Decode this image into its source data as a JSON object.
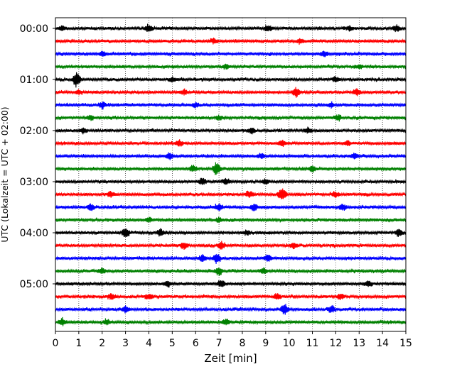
{
  "chart_data": {
    "type": "line",
    "subtype": "dayplot-seismogram",
    "title": "",
    "xlabel": "Zeit  [min]",
    "ylabel": "UTC (Lokalzeit = UTC + 02:00)",
    "xlim": [
      0,
      15
    ],
    "x_ticks": [
      "0",
      "1",
      "2",
      "3",
      "4",
      "5",
      "6",
      "7",
      "8",
      "9",
      "10",
      "11",
      "12",
      "13",
      "14",
      "15"
    ],
    "y_tick_labels": [
      "00:00",
      "01:00",
      "02:00",
      "03:00",
      "04:00",
      "05:00"
    ],
    "trace_interval_min": 15,
    "trace_colors": [
      "#000000",
      "#ff0000",
      "#0000ff",
      "#008000"
    ],
    "grid": "vertical-dotted",
    "traces": [
      {
        "start": "00:00",
        "events": [
          [
            0.3,
            1.4
          ],
          [
            4.0,
            2.2
          ],
          [
            9.1,
            1.8
          ],
          [
            12.6,
            1.6
          ],
          [
            14.6,
            2.0
          ]
        ]
      },
      {
        "start": "00:15",
        "events": [
          [
            6.8,
            1.8
          ],
          [
            10.5,
            1.4
          ]
        ]
      },
      {
        "start": "00:30",
        "events": [
          [
            2.0,
            1.3
          ],
          [
            11.5,
            1.6
          ]
        ]
      },
      {
        "start": "00:45",
        "events": [
          [
            7.3,
            1.3
          ],
          [
            13.0,
            1.3
          ]
        ]
      },
      {
        "start": "01:00",
        "events": [
          [
            0.9,
            5.0
          ],
          [
            5.0,
            1.5
          ],
          [
            12.0,
            1.6
          ]
        ]
      },
      {
        "start": "01:15",
        "events": [
          [
            1.0,
            1.4
          ],
          [
            5.5,
            1.8
          ],
          [
            10.3,
            3.0
          ],
          [
            12.9,
            2.0
          ]
        ]
      },
      {
        "start": "01:30",
        "events": [
          [
            2.0,
            2.0
          ],
          [
            6.0,
            1.5
          ],
          [
            11.8,
            1.6
          ]
        ]
      },
      {
        "start": "01:45",
        "events": [
          [
            1.5,
            1.4
          ],
          [
            7.0,
            1.4
          ],
          [
            12.1,
            1.6
          ]
        ]
      },
      {
        "start": "02:00",
        "events": [
          [
            1.2,
            1.8
          ],
          [
            8.4,
            2.0
          ],
          [
            10.8,
            1.6
          ]
        ]
      },
      {
        "start": "02:15",
        "events": [
          [
            5.3,
            2.0
          ],
          [
            9.7,
            1.8
          ],
          [
            12.5,
            1.5
          ]
        ]
      },
      {
        "start": "02:30",
        "events": [
          [
            4.9,
            1.5
          ],
          [
            8.8,
            1.4
          ],
          [
            12.8,
            1.7
          ]
        ]
      },
      {
        "start": "02:45",
        "events": [
          [
            5.9,
            1.8
          ],
          [
            6.9,
            4.2
          ],
          [
            11.0,
            2.0
          ]
        ]
      },
      {
        "start": "03:00",
        "events": [
          [
            6.3,
            2.2
          ],
          [
            7.3,
            1.8
          ],
          [
            9.0,
            1.6
          ]
        ]
      },
      {
        "start": "03:15",
        "events": [
          [
            2.4,
            1.6
          ],
          [
            8.3,
            1.8
          ],
          [
            9.7,
            4.2
          ],
          [
            12.0,
            1.6
          ]
        ]
      },
      {
        "start": "03:30",
        "events": [
          [
            1.5,
            2.0
          ],
          [
            7.0,
            2.0
          ],
          [
            8.5,
            2.2
          ],
          [
            12.3,
            2.0
          ]
        ]
      },
      {
        "start": "03:45",
        "events": [
          [
            4.0,
            1.6
          ],
          [
            7.0,
            1.4
          ]
        ]
      },
      {
        "start": "04:00",
        "events": [
          [
            3.0,
            3.2
          ],
          [
            4.5,
            2.2
          ],
          [
            8.2,
            1.6
          ],
          [
            14.7,
            2.0
          ]
        ]
      },
      {
        "start": "04:15",
        "events": [
          [
            5.5,
            2.2
          ],
          [
            7.1,
            2.4
          ],
          [
            10.2,
            1.8
          ]
        ]
      },
      {
        "start": "04:30",
        "events": [
          [
            6.3,
            2.0
          ],
          [
            6.9,
            2.8
          ],
          [
            9.1,
            2.0
          ]
        ]
      },
      {
        "start": "04:45",
        "events": [
          [
            2.0,
            1.6
          ],
          [
            7.0,
            2.4
          ],
          [
            8.9,
            1.6
          ]
        ]
      },
      {
        "start": "05:00",
        "events": [
          [
            4.8,
            1.8
          ],
          [
            7.1,
            2.4
          ],
          [
            13.4,
            1.6
          ]
        ]
      },
      {
        "start": "05:15",
        "events": [
          [
            2.4,
            1.8
          ],
          [
            4.0,
            1.6
          ],
          [
            9.5,
            2.0
          ],
          [
            12.2,
            1.8
          ]
        ]
      },
      {
        "start": "05:30",
        "events": [
          [
            3.0,
            1.8
          ],
          [
            9.8,
            3.6
          ],
          [
            11.8,
            2.2
          ]
        ]
      },
      {
        "start": "05:45",
        "events": [
          [
            0.3,
            2.6
          ],
          [
            2.2,
            1.8
          ],
          [
            7.3,
            2.0
          ]
        ]
      }
    ]
  }
}
